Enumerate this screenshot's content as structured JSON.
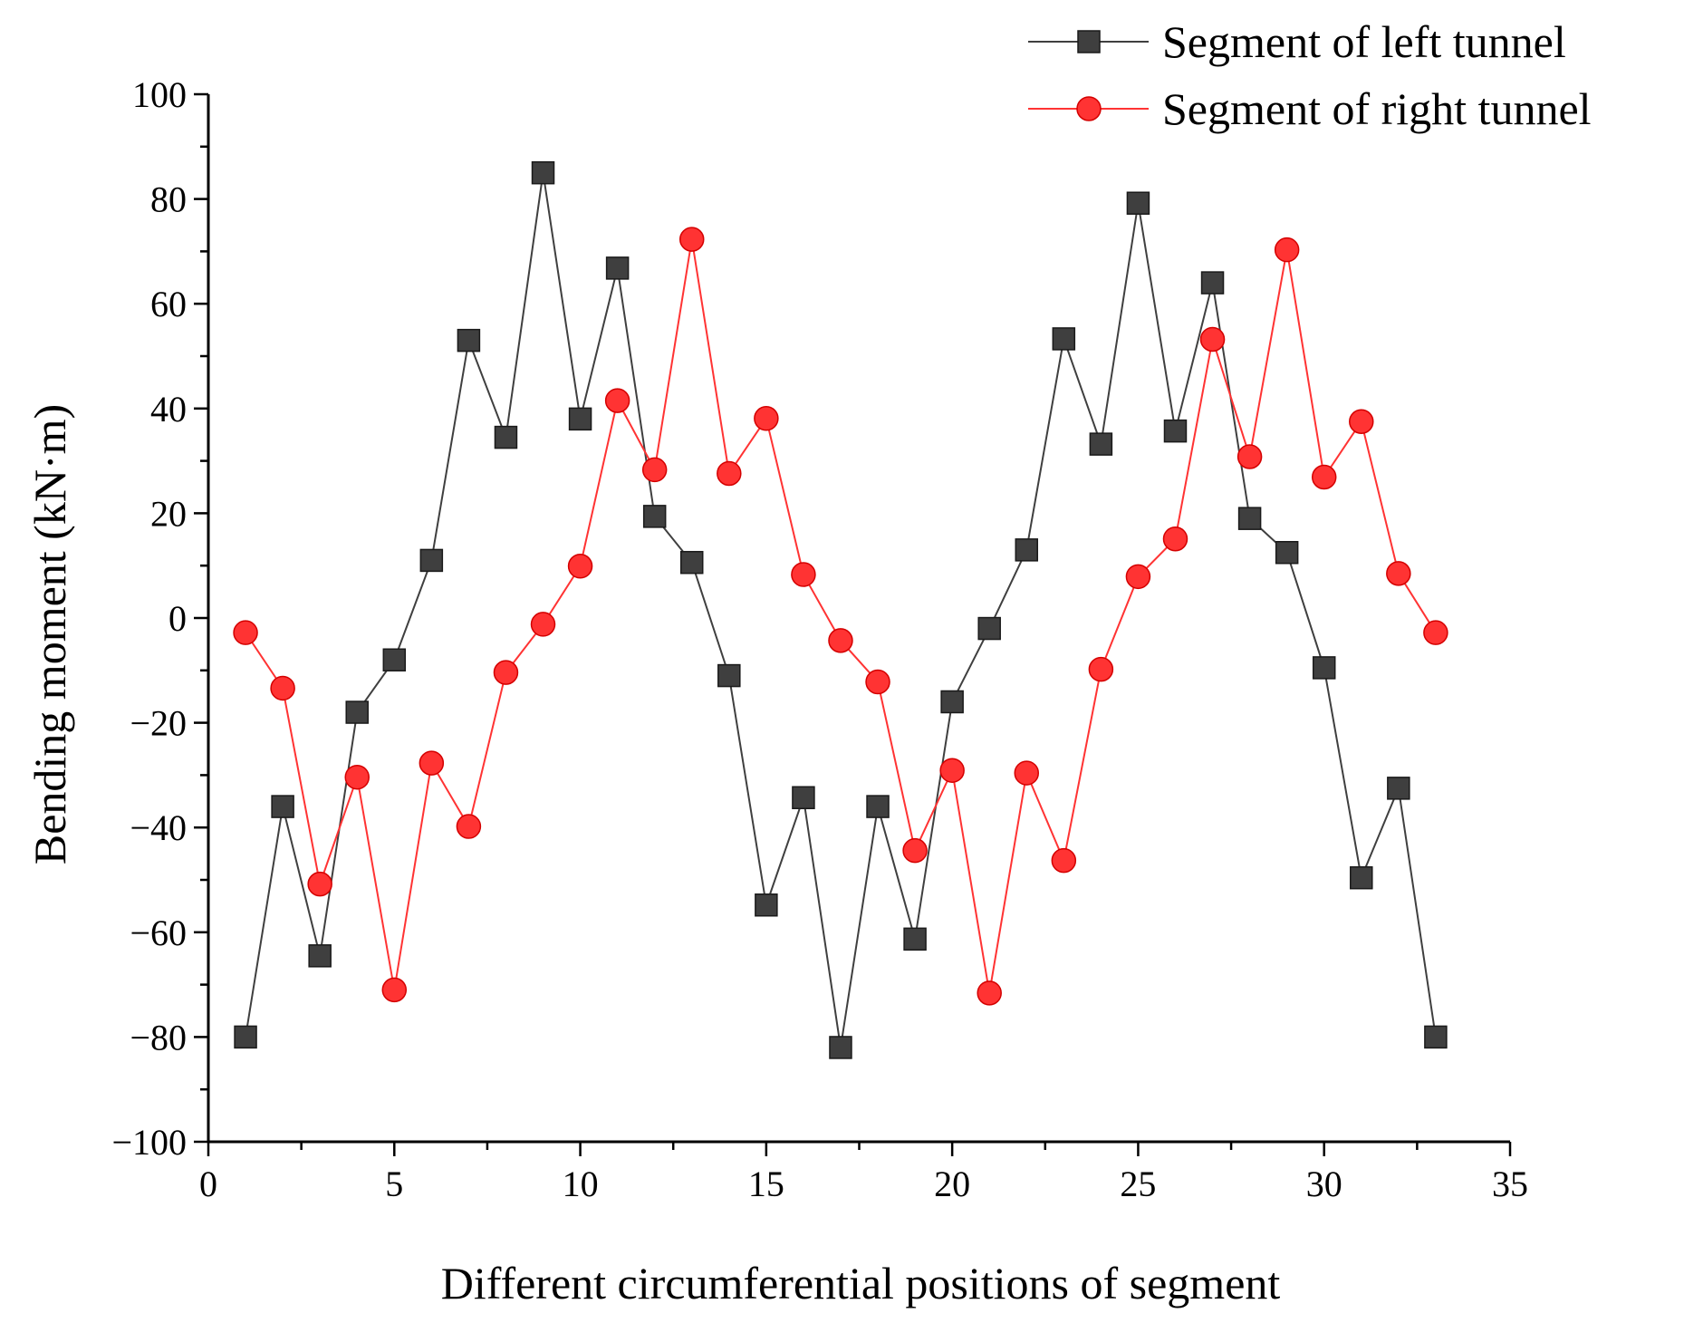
{
  "chart_data": {
    "type": "line",
    "title": "",
    "xlabel": "Different circumferential positions of segment",
    "ylabel": "Bending moment (kN·m)",
    "xlim": [
      0,
      35
    ],
    "ylim": [
      -100,
      100
    ],
    "xticks": [
      "0",
      "5",
      "10",
      "15",
      "20",
      "25",
      "30",
      "35"
    ],
    "yticks": [
      "100",
      "80",
      "60",
      "40",
      "20",
      "0",
      "−20",
      "−40",
      "−60",
      "−80",
      "−100"
    ],
    "grid": false,
    "legend_position": "top-right",
    "x": [
      1,
      2,
      3,
      4,
      5,
      6,
      7,
      8,
      9,
      10,
      11,
      12,
      13,
      14,
      15,
      16,
      17,
      18,
      19,
      20,
      21,
      22,
      23,
      24,
      25,
      26,
      27,
      28,
      29,
      30,
      31,
      32,
      33
    ],
    "series": [
      {
        "name": "Segment of left tunnel",
        "marker": "square",
        "color": "#3f3f3f",
        "values": [
          -80,
          -36,
          -64.5,
          -18,
          -8,
          11,
          53,
          34.5,
          85,
          38,
          66.8,
          19.4,
          10.6,
          -11,
          -54.8,
          -34.3,
          -82,
          -36,
          -61.3,
          -16,
          -2,
          13,
          53.3,
          33.2,
          79.2,
          35.7,
          64,
          19,
          12.5,
          -9.5,
          -49.6,
          -32.5,
          -80
        ]
      },
      {
        "name": "Segment of right tunnel",
        "marker": "circle",
        "color": "#ff3333",
        "values": [
          -2.8,
          -13.4,
          -50.8,
          -30.4,
          -71,
          -27.7,
          -39.8,
          -10.4,
          -1.2,
          9.9,
          41.5,
          28.3,
          72.3,
          27.6,
          38.1,
          8.3,
          -4.3,
          -12.2,
          -44.4,
          -29.1,
          -71.6,
          -29.6,
          -46.3,
          -9.8,
          7.9,
          15.1,
          53.2,
          30.8,
          70.3,
          26.9,
          37.5,
          8.5,
          -2.8
        ]
      }
    ]
  }
}
